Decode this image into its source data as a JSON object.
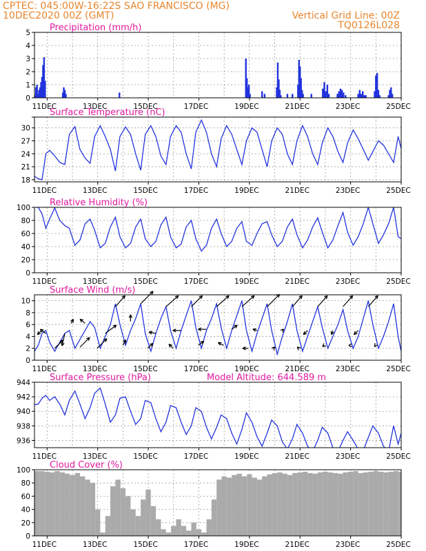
{
  "header": {
    "line1_left": "CPTEC:   045:00W-16:22S   SAO FRANCISCO (MG)",
    "line2_left": "10DEC2020 00Z (GMT)",
    "line2_right": "Vertical Grid Line: 00Z",
    "line3_right": "TQ0126L028"
  },
  "colors": {
    "header": "#e8862e",
    "panel_title": "#e0189e",
    "series": "#2233dd",
    "cloud": "#aaaaaa"
  },
  "x_axis": {
    "day_start": 10.5,
    "day_end": 25.0,
    "tick_days": [
      11,
      13,
      15,
      17,
      19,
      21,
      23,
      25
    ],
    "tick_labels": [
      "11DEC",
      "13DEC",
      "15DEC",
      "17DEC",
      "19DEC",
      "21DEC",
      "23DEC",
      "25DEC"
    ],
    "grid_days": [
      11,
      12,
      13,
      14,
      15,
      16,
      17,
      18,
      19,
      20,
      21,
      22,
      23,
      24,
      25
    ]
  },
  "chart_data": [
    {
      "id": "precip",
      "type": "bar",
      "title": "Precipitation  (mm/h)",
      "ylim": [
        0,
        5
      ],
      "yticks": [
        0,
        1,
        2,
        3,
        4,
        5
      ],
      "x": [
        10.52,
        10.56,
        10.6,
        10.64,
        10.68,
        10.72,
        10.76,
        10.8,
        10.84,
        10.88,
        10.92,
        11.62,
        11.66,
        11.7,
        11.74,
        13.86,
        18.86,
        18.9,
        18.94,
        18.98,
        19.02,
        19.5,
        19.6,
        20.08,
        20.12,
        20.16,
        20.2,
        20.24,
        20.5,
        20.7,
        20.92,
        20.96,
        21.0,
        21.04,
        21.08,
        21.12,
        21.45,
        21.9,
        21.96,
        22.02,
        22.08,
        22.14,
        22.48,
        22.54,
        22.6,
        22.66,
        22.72,
        22.8,
        23.3,
        23.36,
        23.42,
        23.48,
        23.54,
        23.6,
        23.95,
        24.0,
        24.05,
        24.1,
        24.15,
        24.5,
        24.55,
        24.6,
        24.65
      ],
      "values": [
        0.2,
        0.8,
        1.0,
        0.3,
        0.6,
        0.8,
        1.2,
        1.6,
        2.5,
        3.1,
        1.3,
        0.4,
        0.8,
        0.6,
        0.3,
        0.4,
        3.0,
        1.5,
        0.8,
        1.0,
        0.3,
        0.5,
        0.3,
        0.8,
        2.7,
        1.4,
        0.6,
        0.2,
        0.3,
        0.3,
        1.0,
        2.9,
        2.4,
        1.5,
        0.6,
        0.3,
        0.3,
        0.7,
        1.2,
        0.5,
        1.0,
        0.3,
        0.3,
        0.5,
        0.7,
        0.6,
        0.4,
        0.2,
        0.3,
        0.6,
        0.3,
        0.5,
        0.2,
        0.2,
        0.5,
        1.7,
        1.9,
        0.6,
        0.2,
        0.2,
        0.6,
        0.8,
        0.3
      ]
    },
    {
      "id": "temp",
      "type": "line",
      "title": "Surface Temperature (nC)",
      "ylim": [
        17.5,
        32.5
      ],
      "yticks": [
        18,
        21,
        24,
        27,
        30,
        33
      ],
      "ytick_labels": [
        "18",
        "21",
        "24",
        "27",
        "30",
        ""
      ],
      "x": [
        10.5,
        10.65,
        10.8,
        10.95,
        11.1,
        11.3,
        11.5,
        11.7,
        11.88,
        12.1,
        12.3,
        12.5,
        12.7,
        12.88,
        13.1,
        13.3,
        13.5,
        13.7,
        13.88,
        14.1,
        14.3,
        14.5,
        14.7,
        14.88,
        15.1,
        15.3,
        15.5,
        15.7,
        15.88,
        16.1,
        16.3,
        16.5,
        16.7,
        16.88,
        17.1,
        17.3,
        17.5,
        17.7,
        17.88,
        18.1,
        18.3,
        18.5,
        18.7,
        18.88,
        19.1,
        19.3,
        19.5,
        19.7,
        19.88,
        20.1,
        20.3,
        20.5,
        20.7,
        20.88,
        21.1,
        21.3,
        21.5,
        21.7,
        21.88,
        22.1,
        22.3,
        22.5,
        22.7,
        22.88,
        23.1,
        23.3,
        23.5,
        23.7,
        23.88,
        24.1,
        24.3,
        24.5,
        24.7,
        24.88,
        25.0
      ],
      "values": [
        18.8,
        18.2,
        18.0,
        24.0,
        24.8,
        23.5,
        22.0,
        21.5,
        28.5,
        30.3,
        25.0,
        23.0,
        21.8,
        28.0,
        30.5,
        28.0,
        25.0,
        20.0,
        28.0,
        30.2,
        28.5,
        24.0,
        20.2,
        28.5,
        30.5,
        28.0,
        23.5,
        21.5,
        28.0,
        30.5,
        29.0,
        24.0,
        20.5,
        29.0,
        31.8,
        29.0,
        24.0,
        21.0,
        27.5,
        30.5,
        28.5,
        25.0,
        21.5,
        27.0,
        30.0,
        29.0,
        25.0,
        21.0,
        27.0,
        30.0,
        28.5,
        24.0,
        21.5,
        27.0,
        30.5,
        28.0,
        24.0,
        21.5,
        26.5,
        30.0,
        28.0,
        24.5,
        22.0,
        26.5,
        29.5,
        27.5,
        25.0,
        22.5,
        24.5,
        27.0,
        26.0,
        24.0,
        22.0,
        28.0,
        25.2
      ]
    },
    {
      "id": "rh",
      "type": "line",
      "title": "Relative Humidity (%)",
      "ylim": [
        0,
        100
      ],
      "yticks": [
        0,
        20,
        40,
        60,
        80,
        100
      ],
      "x": [
        10.5,
        10.65,
        10.8,
        10.95,
        11.1,
        11.3,
        11.5,
        11.7,
        11.88,
        12.1,
        12.3,
        12.5,
        12.7,
        12.88,
        13.1,
        13.3,
        13.5,
        13.7,
        13.88,
        14.1,
        14.3,
        14.5,
        14.7,
        14.88,
        15.1,
        15.3,
        15.5,
        15.7,
        15.88,
        16.1,
        16.3,
        16.5,
        16.7,
        16.88,
        17.1,
        17.3,
        17.5,
        17.7,
        17.88,
        18.1,
        18.3,
        18.5,
        18.7,
        18.88,
        19.1,
        19.3,
        19.5,
        19.7,
        19.88,
        20.1,
        20.3,
        20.5,
        20.7,
        20.88,
        21.1,
        21.3,
        21.5,
        21.7,
        21.88,
        22.1,
        22.3,
        22.5,
        22.7,
        22.88,
        23.1,
        23.3,
        23.5,
        23.7,
        23.88,
        24.1,
        24.3,
        24.5,
        24.7,
        24.88,
        25.0
      ],
      "values": [
        100,
        100,
        90,
        68,
        82,
        99,
        80,
        72,
        68,
        42,
        50,
        75,
        82,
        65,
        38,
        45,
        70,
        85,
        55,
        38,
        45,
        70,
        82,
        52,
        40,
        48,
        73,
        85,
        55,
        38,
        44,
        70,
        80,
        52,
        33,
        42,
        68,
        82,
        60,
        40,
        48,
        68,
        78,
        48,
        42,
        60,
        75,
        78,
        58,
        40,
        48,
        70,
        82,
        58,
        38,
        50,
        70,
        84,
        62,
        38,
        50,
        72,
        92,
        62,
        42,
        55,
        75,
        100,
        75,
        45,
        58,
        75,
        100,
        55,
        52
      ]
    },
    {
      "id": "wind",
      "type": "line",
      "title": "Surface Wind (m/s)",
      "ylim": [
        0,
        11
      ],
      "yticks": [
        0,
        2,
        4,
        6,
        8,
        10
      ],
      "x": [
        10.5,
        10.65,
        10.8,
        10.95,
        11.1,
        11.3,
        11.5,
        11.7,
        11.88,
        12.1,
        12.3,
        12.5,
        12.7,
        12.88,
        13.1,
        13.3,
        13.5,
        13.7,
        13.88,
        14.1,
        14.3,
        14.5,
        14.7,
        14.88,
        15.1,
        15.3,
        15.5,
        15.7,
        15.88,
        16.1,
        16.3,
        16.5,
        16.7,
        16.88,
        17.1,
        17.3,
        17.5,
        17.7,
        17.88,
        18.1,
        18.3,
        18.5,
        18.7,
        18.88,
        19.1,
        19.3,
        19.5,
        19.7,
        19.88,
        20.1,
        20.3,
        20.5,
        20.7,
        20.88,
        21.1,
        21.3,
        21.5,
        21.7,
        21.88,
        22.1,
        22.3,
        22.5,
        22.7,
        22.88,
        23.1,
        23.3,
        23.5,
        23.7,
        23.88,
        24.1,
        24.3,
        24.5,
        24.7,
        24.88,
        25.0
      ],
      "values": [
        1.5,
        2.5,
        4.5,
        5.0,
        3.0,
        1.5,
        3.0,
        4.5,
        5.0,
        2.0,
        3.5,
        5.0,
        6.5,
        5.5,
        2.0,
        4.0,
        6.0,
        9.5,
        6.0,
        2.5,
        5.0,
        7.0,
        9.5,
        4.5,
        1.5,
        4.5,
        7.0,
        9.0,
        5.0,
        2.0,
        5.0,
        7.5,
        10.0,
        5.5,
        2.0,
        5.0,
        7.0,
        9.5,
        5.5,
        2.0,
        5.0,
        7.5,
        10.0,
        5.0,
        1.5,
        4.5,
        7.0,
        9.5,
        5.0,
        1.0,
        4.0,
        6.5,
        9.5,
        5.0,
        1.5,
        4.0,
        6.5,
        9.0,
        5.5,
        2.0,
        4.0,
        6.0,
        8.5,
        5.0,
        2.0,
        4.0,
        7.0,
        10.0,
        6.0,
        2.0,
        4.0,
        6.5,
        9.5,
        4.0,
        1.5
      ],
      "arrow_x": [
        10.78,
        10.95,
        11.3,
        11.7,
        11.95,
        12.3,
        12.5,
        12.98,
        13.3,
        13.7,
        14.0,
        14.3,
        14.7,
        14.97,
        15.3,
        15.7,
        15.98,
        16.3,
        16.7,
        16.98,
        17.3,
        17.7,
        17.98,
        18.3,
        18.7,
        18.95,
        19.3,
        19.7,
        19.95,
        20.3,
        20.7,
        20.95,
        21.3,
        21.7,
        21.95,
        22.3,
        22.7,
        22.98,
        23.3,
        23.7,
        23.98
      ],
      "arrow_y": [
        5.0,
        4.5,
        2.0,
        4.5,
        6.2,
        2.2,
        6.2,
        2.0,
        4.5,
        9.0,
        2.5,
        6.5,
        9.5,
        2.0,
        4.5,
        9.0,
        2.0,
        5.0,
        9.0,
        2.5,
        5.2,
        9.0,
        2.5,
        5.2,
        9.0,
        2.0,
        5.0,
        9.0,
        2.0,
        5.0,
        9.0,
        2.0,
        5.0,
        9.0,
        2.5,
        5.0,
        9.0,
        2.5,
        5.0,
        9.0,
        2.5
      ],
      "arrow_u": [
        -1.5,
        -2.0,
        3.0,
        -1.0,
        0.8,
        3.5,
        -1.8,
        3.5,
        4.0,
        3.5,
        1.0,
        0.0,
        4.5,
        2.0,
        -2.5,
        4.5,
        -1.5,
        -3.0,
        4.0,
        2.0,
        -3.0,
        4.5,
        -2.0,
        2.0,
        4.5,
        -2.0,
        -1.5,
        4.5,
        0.5,
        0.5,
        3.5,
        -0.5,
        -1.5,
        3.5,
        -0.5,
        -0.5,
        3.5,
        -0.5,
        -1.5,
        3.5,
        -0.3
      ],
      "arrow_v": [
        -1.5,
        1.5,
        3.0,
        -4.5,
        1.5,
        3.5,
        1.5,
        3.5,
        3.0,
        4.0,
        2.0,
        2.5,
        4.5,
        1.8,
        0.5,
        4.0,
        1.5,
        0.0,
        4.0,
        1.5,
        0.0,
        4.0,
        1.0,
        1.5,
        4.0,
        0.0,
        0.5,
        4.5,
        0.5,
        0.5,
        4.0,
        0.5,
        -1.5,
        4.0,
        -0.5,
        -1.5,
        4.0,
        0.0,
        -1.5,
        4.0,
        -0.5
      ]
    },
    {
      "id": "pressure",
      "type": "line",
      "title": "Surface Pressure (hPa)",
      "annotation": "Model Altitude: 644.589  m",
      "ylim": [
        935,
        944
      ],
      "yticks": [
        936,
        938,
        940,
        942,
        944
      ],
      "x": [
        10.5,
        10.65,
        10.8,
        10.95,
        11.1,
        11.3,
        11.5,
        11.7,
        11.88,
        12.1,
        12.3,
        12.5,
        12.7,
        12.88,
        13.1,
        13.3,
        13.5,
        13.7,
        13.88,
        14.1,
        14.3,
        14.5,
        14.7,
        14.88,
        15.1,
        15.3,
        15.5,
        15.7,
        15.88,
        16.1,
        16.3,
        16.5,
        16.7,
        16.88,
        17.1,
        17.3,
        17.5,
        17.7,
        17.88,
        18.1,
        18.3,
        18.5,
        18.7,
        18.88,
        19.1,
        19.3,
        19.5,
        19.7,
        19.88,
        20.1,
        20.3,
        20.5,
        20.7,
        20.88,
        21.1,
        21.3,
        21.5,
        21.7,
        21.88,
        22.1,
        22.3,
        22.5,
        22.7,
        22.88,
        23.1,
        23.3,
        23.5,
        23.7,
        23.88,
        24.1,
        24.3,
        24.5,
        24.7,
        24.88,
        25.0
      ],
      "values": [
        940.9,
        941.0,
        941.8,
        942.2,
        941.5,
        942.0,
        941.0,
        939.5,
        941.5,
        942.8,
        941.0,
        939.0,
        940.5,
        942.5,
        943.2,
        941.0,
        938.5,
        939.5,
        941.8,
        942.0,
        940.0,
        938.2,
        939.0,
        941.5,
        941.2,
        939.0,
        937.2,
        938.5,
        940.8,
        940.5,
        938.5,
        936.8,
        938.0,
        940.5,
        940.0,
        937.8,
        936.2,
        937.8,
        939.5,
        939.0,
        937.0,
        935.5,
        937.5,
        939.8,
        938.5,
        936.5,
        935.2,
        937.0,
        938.8,
        938.0,
        935.8,
        934.8,
        936.2,
        938.2,
        937.0,
        935.2,
        934.5,
        936.0,
        937.8,
        937.0,
        935.0,
        934.5,
        936.0,
        937.2,
        936.0,
        934.8,
        934.6,
        936.4,
        938.0,
        937.0,
        935.2,
        934.5,
        938.0,
        935.5,
        937.0
      ]
    },
    {
      "id": "cloud",
      "type": "area",
      "title": "Cloud Cover (%)",
      "ylim": [
        0,
        100
      ],
      "yticks": [
        0,
        20,
        40,
        60,
        80,
        100
      ],
      "x": [
        10.5,
        10.7,
        10.9,
        11.1,
        11.3,
        11.5,
        11.7,
        11.9,
        12.1,
        12.3,
        12.5,
        12.7,
        12.9,
        13.1,
        13.3,
        13.5,
        13.7,
        13.9,
        14.1,
        14.3,
        14.5,
        14.7,
        14.9,
        15.1,
        15.3,
        15.5,
        15.7,
        15.9,
        16.1,
        16.3,
        16.5,
        16.7,
        16.9,
        17.1,
        17.3,
        17.5,
        17.7,
        17.9,
        18.1,
        18.3,
        18.5,
        18.7,
        18.9,
        19.1,
        19.3,
        19.5,
        19.7,
        19.9,
        20.1,
        20.3,
        20.5,
        20.7,
        20.9,
        21.1,
        21.3,
        21.5,
        21.7,
        21.9,
        22.1,
        22.3,
        22.5,
        22.7,
        22.9,
        23.1,
        23.3,
        23.5,
        23.7,
        23.9,
        24.1,
        24.3,
        24.5,
        24.7,
        24.9,
        25.0
      ],
      "values": [
        98,
        98,
        97,
        96,
        98,
        96,
        94,
        92,
        95,
        90,
        85,
        80,
        40,
        5,
        30,
        75,
        85,
        72,
        60,
        40,
        30,
        55,
        70,
        45,
        25,
        10,
        5,
        15,
        25,
        15,
        8,
        20,
        10,
        5,
        25,
        55,
        85,
        90,
        88,
        92,
        94,
        90,
        93,
        88,
        85,
        90,
        93,
        95,
        96,
        94,
        92,
        95,
        96,
        97,
        95,
        94,
        96,
        97,
        96,
        95,
        94,
        96,
        97,
        98,
        95,
        96,
        97,
        98,
        97,
        96,
        97,
        98,
        97,
        97
      ]
    }
  ]
}
